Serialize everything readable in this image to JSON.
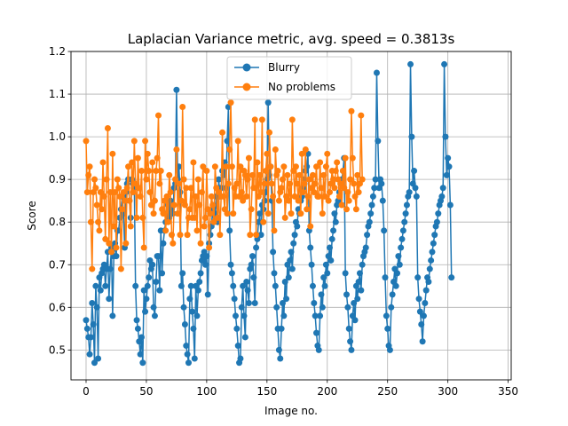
{
  "chart_data": {
    "type": "line",
    "title": "Laplacian Variance metric, avg. speed = 0.3813s",
    "xlabel": "Image no.",
    "ylabel": "Score",
    "xlim": [
      -12.5,
      352.5
    ],
    "ylim": [
      0.43,
      1.2
    ],
    "xticks": [
      0,
      50,
      100,
      150,
      200,
      250,
      300,
      350
    ],
    "yticks": [
      0.5,
      0.6,
      0.7,
      0.8,
      0.9,
      1.0,
      1.1,
      1.2
    ],
    "grid": true,
    "legend_position": "upper center",
    "series": [
      {
        "name": "Blurry",
        "color": "#1f77b4",
        "values": [
          0.57,
          0.55,
          0.53,
          0.49,
          0.53,
          0.61,
          0.56,
          0.47,
          0.65,
          0.6,
          0.48,
          0.67,
          0.64,
          0.68,
          0.69,
          0.7,
          0.65,
          0.69,
          0.73,
          0.62,
          0.69,
          0.74,
          0.58,
          0.72,
          0.75,
          0.72,
          0.78,
          0.78,
          0.81,
          0.83,
          0.86,
          0.82,
          0.74,
          0.87,
          0.89,
          0.9,
          0.85,
          0.81,
          0.9,
          0.89,
          0.88,
          0.65,
          0.57,
          0.55,
          0.52,
          0.49,
          0.53,
          0.47,
          0.64,
          0.59,
          0.62,
          0.65,
          0.67,
          0.71,
          0.69,
          0.7,
          0.6,
          0.58,
          0.66,
          0.72,
          0.72,
          0.64,
          0.78,
          0.68,
          0.75,
          0.78,
          0.8,
          0.82,
          0.84,
          0.81,
          0.85,
          0.83,
          0.82,
          0.88,
          0.89,
          1.11,
          0.9,
          0.93,
          0.87,
          0.65,
          0.68,
          0.6,
          0.56,
          0.51,
          0.49,
          0.47,
          0.62,
          0.65,
          0.59,
          0.55,
          0.48,
          0.65,
          0.58,
          0.64,
          0.66,
          0.68,
          0.71,
          0.72,
          0.73,
          0.7,
          0.72,
          0.63,
          0.75,
          0.77,
          0.79,
          0.83,
          0.8,
          0.82,
          0.86,
          0.8,
          0.9,
          0.86,
          0.88,
          0.92,
          0.91,
          0.94,
          0.88,
          0.99,
          1.07,
          0.78,
          0.7,
          0.68,
          0.65,
          0.62,
          0.58,
          0.55,
          0.51,
          0.47,
          0.48,
          0.6,
          0.65,
          0.58,
          0.53,
          0.66,
          0.64,
          0.61,
          0.69,
          0.7,
          0.72,
          0.67,
          0.61,
          0.74,
          0.76,
          0.8,
          0.82,
          0.77,
          0.84,
          0.83,
          0.85,
          0.87,
          0.9,
          1.08,
          0.91,
          0.93,
          0.85,
          0.73,
          0.68,
          0.65,
          0.6,
          0.55,
          0.5,
          0.48,
          0.55,
          0.61,
          0.58,
          0.66,
          0.62,
          0.7,
          0.67,
          0.71,
          0.73,
          0.69,
          0.75,
          0.77,
          0.8,
          0.79,
          0.83,
          0.82,
          0.85,
          0.86,
          0.88,
          0.9,
          0.92,
          0.93,
          0.96,
          0.78,
          0.74,
          0.7,
          0.65,
          0.61,
          0.58,
          0.54,
          0.51,
          0.5,
          0.58,
          0.63,
          0.6,
          0.67,
          0.65,
          0.7,
          0.68,
          0.72,
          0.74,
          0.71,
          0.76,
          0.78,
          0.82,
          0.8,
          0.84,
          0.85,
          0.87,
          0.89,
          0.9,
          0.92,
          0.95,
          0.68,
          0.63,
          0.6,
          0.55,
          0.52,
          0.5,
          0.58,
          0.61,
          0.57,
          0.65,
          0.62,
          0.66,
          0.68,
          0.64,
          0.7,
          0.72,
          0.73,
          0.74,
          0.77,
          0.79,
          0.8,
          0.82,
          0.84,
          0.86,
          0.88,
          0.9,
          1.15,
          0.99,
          0.88,
          0.9,
          0.89,
          0.85,
          0.78,
          0.67,
          0.58,
          0.55,
          0.51,
          0.5,
          0.6,
          0.63,
          0.66,
          0.69,
          0.65,
          0.68,
          0.72,
          0.7,
          0.74,
          0.76,
          0.78,
          0.8,
          0.82,
          0.84,
          0.86,
          0.87,
          1.17,
          1.0,
          0.89,
          0.92,
          0.88,
          0.86,
          0.67,
          0.62,
          0.59,
          0.56,
          0.52,
          0.58,
          0.61,
          0.64,
          0.67,
          0.66,
          0.69,
          0.71,
          0.73,
          0.75,
          0.77,
          0.79,
          0.8,
          0.82,
          0.84,
          0.85,
          0.86,
          0.88,
          1.17,
          1.0,
          0.91,
          0.95,
          0.93,
          0.84,
          0.67
        ]
      },
      {
        "name": "No problems",
        "color": "#ff7f0e",
        "values": [
          0.99,
          0.87,
          0.91,
          0.93,
          0.8,
          0.69,
          0.87,
          0.9,
          0.88,
          0.84,
          0.8,
          0.78,
          0.87,
          0.83,
          0.94,
          0.86,
          0.76,
          0.9,
          1.02,
          0.75,
          0.87,
          0.73,
          0.96,
          0.79,
          0.87,
          0.74,
          0.9,
          0.88,
          0.86,
          0.69,
          0.83,
          0.87,
          0.85,
          0.75,
          0.88,
          0.93,
          0.85,
          0.79,
          0.94,
          0.87,
          0.99,
          0.89,
          0.81,
          0.95,
          0.88,
          0.86,
          0.92,
          0.81,
          0.74,
          0.99,
          0.9,
          0.96,
          0.92,
          0.87,
          0.84,
          0.94,
          0.82,
          0.85,
          0.92,
          0.95,
          1.05,
          0.89,
          0.92,
          0.83,
          0.82,
          0.85,
          0.78,
          0.86,
          0.8,
          0.91,
          0.87,
          0.77,
          0.75,
          0.84,
          0.9,
          0.97,
          0.82,
          0.89,
          0.77,
          0.85,
          1.07,
          0.9,
          0.84,
          0.88,
          0.77,
          0.81,
          0.83,
          0.88,
          0.81,
          0.94,
          0.81,
          0.86,
          0.78,
          0.9,
          0.84,
          0.75,
          0.87,
          0.93,
          0.79,
          0.81,
          0.92,
          0.83,
          0.74,
          0.82,
          0.86,
          0.84,
          0.8,
          0.93,
          0.88,
          0.81,
          0.87,
          0.77,
          0.86,
          1.01,
          0.86,
          0.83,
          0.93,
          0.82,
          0.89,
          0.97,
          1.08,
          0.93,
          0.82,
          0.88,
          0.86,
          0.89,
          0.99,
          0.86,
          0.93,
          0.87,
          0.85,
          0.92,
          0.91,
          0.86,
          0.9,
          0.95,
          0.77,
          0.83,
          0.91,
          0.88,
          1.04,
          0.77,
          0.94,
          0.86,
          0.91,
          0.87,
          1.04,
          0.8,
          0.89,
          0.92,
          0.96,
          0.82,
          1.01,
          0.93,
          0.89,
          0.86,
          0.78,
          0.97,
          0.91,
          0.92,
          0.85,
          0.87,
          0.88,
          0.9,
          0.93,
          0.81,
          0.86,
          0.91,
          0.85,
          0.89,
          0.82,
          1.04,
          0.92,
          0.86,
          0.93,
          0.89,
          0.85,
          0.91,
          0.82,
          0.96,
          0.87,
          0.89,
          0.97,
          0.83,
          0.86,
          0.9,
          0.79,
          0.88,
          0.91,
          0.87,
          0.89,
          0.93,
          0.86,
          0.86,
          0.94,
          0.88,
          0.82,
          0.91,
          0.86,
          0.93,
          0.96,
          0.85,
          0.87,
          0.89,
          0.92,
          0.9,
          0.88,
          0.92,
          0.94,
          0.9,
          0.86,
          0.89,
          0.84,
          0.92,
          0.88,
          0.95,
          0.83,
          0.87,
          0.85,
          0.9,
          1.06,
          0.95,
          0.89,
          0.86,
          0.83,
          0.91,
          0.87,
          0.89,
          1.05,
          0.9
        ]
      }
    ]
  }
}
